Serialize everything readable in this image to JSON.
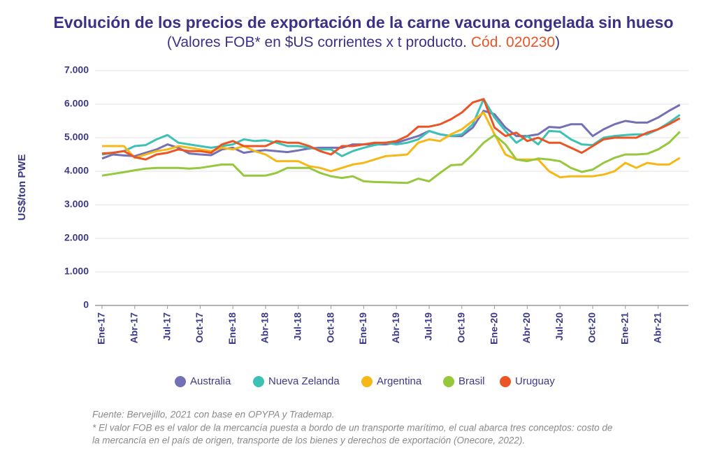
{
  "chart_data": {
    "type": "line",
    "title": "Evolución de los precios de exportación de la carne vacuna congelada sin hueso",
    "subtitle": [
      "(Valores FOB* en $US corrientes x t producto. ",
      "Cód. 020230",
      ")"
    ],
    "y_label": "US$/ton PWE",
    "categories": [
      "Ene-17",
      null,
      null,
      "Abr-17",
      null,
      null,
      "Jul-17",
      null,
      null,
      "Oct-17",
      null,
      null,
      "Ene-18",
      null,
      null,
      "Abr-18",
      null,
      null,
      "Jul-18",
      null,
      null,
      "Oct-18",
      null,
      null,
      "Ene-19",
      null,
      null,
      "Abr-19",
      null,
      null,
      "Jul-19",
      null,
      null,
      "Oct-19",
      null,
      null,
      "Ene-20",
      null,
      null,
      "Abr-20",
      null,
      null,
      "Jul-20",
      null,
      null,
      "Oct-20",
      null,
      null,
      "Ene-21",
      null,
      null,
      "Abr-21",
      null,
      null
    ],
    "ylim": [
      0,
      7000
    ],
    "yticks": [
      0,
      {
        "value": 1000,
        "label": "1.000"
      },
      {
        "value": 2000,
        "label": "2.000"
      },
      {
        "value": 3000,
        "label": "3.000"
      },
      {
        "value": 4000,
        "label": "4.000"
      },
      {
        "value": 5000,
        "label": "5.000"
      },
      {
        "value": 6000,
        "label": "6.000"
      },
      {
        "value": 7000,
        "label": "7.000"
      }
    ],
    "grid": true,
    "legend": "bottom",
    "series": [
      {
        "name": "Australia",
        "color": "#7470b5",
        "values": [
          4380,
          4500,
          4470,
          4450,
          4550,
          4650,
          4800,
          4700,
          4530,
          4500,
          4480,
          4650,
          4700,
          4550,
          4600,
          4630,
          4600,
          4570,
          4620,
          4680,
          4700,
          4700,
          4700,
          4800,
          4800,
          4800,
          4800,
          4850,
          4950,
          5050,
          5200,
          5100,
          5050,
          5050,
          5300,
          5800,
          5700,
          5300,
          5050,
          5050,
          5100,
          5320,
          5300,
          5400,
          5400,
          5050,
          5250,
          5400,
          5500,
          5450,
          5450,
          5600,
          5800,
          5980
        ]
      },
      {
        "name": "Nueva Zelanda",
        "color": "#3ec1b5",
        "values": [
          4500,
          4550,
          4600,
          4750,
          4780,
          4950,
          5080,
          4850,
          4800,
          4750,
          4700,
          4750,
          4800,
          4950,
          4900,
          4920,
          4850,
          4750,
          4750,
          4700,
          4650,
          4650,
          4450,
          4600,
          4700,
          4780,
          4850,
          4800,
          4850,
          4950,
          5200,
          5100,
          5050,
          5100,
          5400,
          6150,
          5600,
          5200,
          4850,
          5050,
          4800,
          5200,
          5180,
          4950,
          4800,
          4780,
          5000,
          5050,
          5080,
          5100,
          5100,
          5250,
          5450,
          5680
        ]
      },
      {
        "name": "Argentina",
        "color": "#f6b816",
        "values": [
          4750,
          4750,
          4750,
          4400,
          4500,
          4600,
          4650,
          4750,
          4700,
          4650,
          4600,
          4700,
          4650,
          4750,
          4600,
          4500,
          4300,
          4300,
          4300,
          4150,
          4100,
          4000,
          4100,
          4200,
          4250,
          4350,
          4450,
          4470,
          4500,
          4850,
          4950,
          4900,
          5100,
          5250,
          5500,
          5750,
          5100,
          4500,
          4350,
          4350,
          4350,
          4000,
          3820,
          3850,
          3850,
          3850,
          3900,
          4000,
          4250,
          4100,
          4250,
          4200,
          4200,
          4400
        ]
      },
      {
        "name": "Brasil",
        "color": "#95c83d",
        "values": [
          3870,
          3920,
          3970,
          4030,
          4080,
          4100,
          4100,
          4100,
          4080,
          4100,
          4150,
          4200,
          4200,
          3870,
          3870,
          3870,
          3950,
          4100,
          4100,
          4100,
          3950,
          3850,
          3800,
          3850,
          3700,
          3680,
          3670,
          3660,
          3650,
          3780,
          3700,
          3950,
          4180,
          4200,
          4500,
          4850,
          5080,
          4800,
          4350,
          4300,
          4380,
          4350,
          4300,
          4100,
          3980,
          4050,
          4250,
          4400,
          4500,
          4500,
          4520,
          4650,
          4850,
          5180
        ]
      },
      {
        "name": "Uruguay",
        "color": "#ec5424",
        "values": [
          4530,
          4550,
          4600,
          4420,
          4350,
          4500,
          4550,
          4650,
          4600,
          4600,
          4550,
          4800,
          4900,
          4750,
          4750,
          4750,
          4900,
          4850,
          4850,
          4750,
          4600,
          4500,
          4750,
          4750,
          4800,
          4850,
          4850,
          4900,
          5050,
          5330,
          5330,
          5400,
          5550,
          5750,
          6050,
          6150,
          5300,
          5050,
          5150,
          4900,
          5000,
          4850,
          4850,
          4700,
          4550,
          4750,
          4950,
          5000,
          5000,
          5000,
          5150,
          5250,
          5400,
          5580
        ]
      }
    ],
    "footnotes": [
      "Fuente: Bervejillo, 2021 con base en OPYPA y Trademap.",
      "* El valor FOB es el valor de la mercancía puesta a bordo de un transporte marítimo, el cual abarca tres conceptos: costo de",
      "la mercancía en el país de origen, transporte de los bienes y derechos de exportación (Onecore, 2022)."
    ]
  }
}
